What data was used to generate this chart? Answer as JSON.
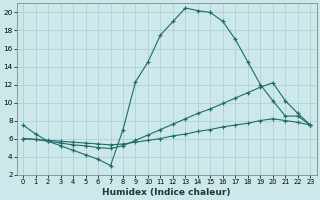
{
  "xlabel": "Humidex (Indice chaleur)",
  "bg_color": "#cce8ea",
  "grid_color": "#aacdd0",
  "line_color": "#1f6b6b",
  "xlim": [
    -0.5,
    23.5
  ],
  "ylim": [
    2,
    21
  ],
  "xticks": [
    0,
    1,
    2,
    3,
    4,
    5,
    6,
    7,
    8,
    9,
    10,
    11,
    12,
    13,
    14,
    15,
    16,
    17,
    18,
    19,
    20,
    21,
    22,
    23
  ],
  "yticks": [
    2,
    4,
    6,
    8,
    10,
    12,
    14,
    16,
    18,
    20
  ],
  "curve1_x": [
    0,
    1,
    2,
    3,
    4,
    5,
    6,
    7,
    8,
    9,
    10,
    11,
    12,
    13,
    14,
    15,
    16,
    17,
    18,
    19,
    20,
    21,
    22,
    23
  ],
  "curve1_y": [
    7.5,
    6.5,
    5.7,
    5.2,
    4.7,
    4.2,
    3.7,
    3.0,
    7.0,
    12.3,
    14.5,
    17.5,
    19.0,
    20.5,
    20.2,
    20.0,
    19.0,
    17.0,
    14.5,
    12.0,
    10.2,
    8.5,
    8.5,
    7.5
  ],
  "curve2_x": [
    0,
    1,
    2,
    3,
    4,
    5,
    6,
    7,
    8,
    9,
    10,
    11,
    12,
    13,
    14,
    15,
    16,
    17,
    18,
    19,
    20,
    21,
    22,
    23
  ],
  "curve2_y": [
    6.0,
    5.9,
    5.7,
    5.5,
    5.3,
    5.2,
    5.0,
    4.9,
    5.2,
    5.8,
    6.4,
    7.0,
    7.6,
    8.2,
    8.8,
    9.3,
    9.9,
    10.5,
    11.1,
    11.7,
    12.2,
    10.2,
    8.8,
    7.5
  ],
  "curve3_x": [
    0,
    1,
    2,
    3,
    4,
    5,
    6,
    7,
    8,
    9,
    10,
    11,
    12,
    13,
    14,
    15,
    16,
    17,
    18,
    19,
    20,
    21,
    22,
    23
  ],
  "curve3_y": [
    6.0,
    5.9,
    5.8,
    5.7,
    5.6,
    5.5,
    5.4,
    5.3,
    5.4,
    5.6,
    5.8,
    6.0,
    6.3,
    6.5,
    6.8,
    7.0,
    7.3,
    7.5,
    7.7,
    8.0,
    8.2,
    8.0,
    7.8,
    7.5
  ]
}
